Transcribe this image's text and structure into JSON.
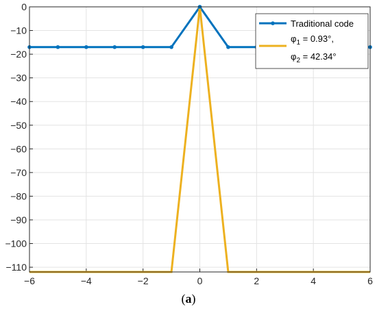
{
  "chart_data": {
    "type": "line",
    "xlim": [
      -6,
      6
    ],
    "ylim": [
      -112,
      0
    ],
    "x_ticks": [
      -6,
      -4,
      -2,
      0,
      2,
      4,
      6
    ],
    "y_ticks": [
      0,
      -10,
      -20,
      -30,
      -40,
      -50,
      -60,
      -70,
      -80,
      -90,
      -100,
      -110
    ],
    "grid": true,
    "legend_position": "top-right",
    "series": [
      {
        "name": "Traditional code",
        "color": "#0072BD",
        "marker": "dot",
        "x": [
          -6,
          -5,
          -4,
          -3,
          -2,
          -1,
          0,
          1,
          2,
          3,
          4,
          5,
          6
        ],
        "y": [
          -17,
          -17,
          -17,
          -17,
          -17,
          -17,
          0,
          -17,
          -17,
          -17,
          -17,
          -17,
          -17
        ]
      },
      {
        "name_lines": [
          "φ1 = 0.93°,",
          "φ2 = 42.34°"
        ],
        "color": "#EDB120",
        "marker": "none",
        "x": [
          -6,
          -5,
          -4,
          -3,
          -2,
          -1,
          0,
          1,
          2,
          3,
          4,
          5,
          6
        ],
        "y": [
          -112,
          -112,
          -112,
          -112,
          -112,
          -112,
          0,
          -112,
          -112,
          -112,
          -112,
          -112,
          -112
        ]
      }
    ]
  },
  "legend": {
    "entry1": "Traditional code",
    "entry2_line1_sym": "φ",
    "entry2_line1_sub": "1",
    "entry2_line1_rest": " = 0.93°,",
    "entry2_line2_sym": "φ",
    "entry2_line2_sub": "2",
    "entry2_line2_rest": " = 42.34°"
  },
  "caption": {
    "open": "(",
    "letter": "a",
    "close": ")"
  }
}
